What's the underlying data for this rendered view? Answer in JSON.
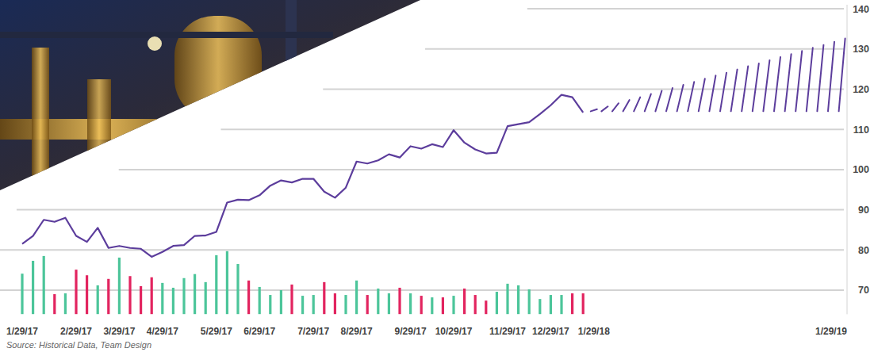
{
  "chart_data": {
    "type": "line",
    "source": "Source: Historical Data, Team Design",
    "categories": [
      "1/29/17",
      null,
      null,
      null,
      null,
      "2/29/17",
      null,
      null,
      null,
      "3/29/17",
      null,
      null,
      null,
      "4/29/17",
      null,
      null,
      null,
      null,
      "5/29/17",
      null,
      null,
      null,
      "6/29/17",
      null,
      null,
      null,
      null,
      "7/29/17",
      null,
      null,
      null,
      "8/29/17",
      null,
      null,
      null,
      null,
      "9/29/17",
      null,
      null,
      null,
      "10/29/17",
      null,
      null,
      null,
      null,
      "11/29/17",
      null,
      null,
      null,
      "12/29/17",
      null,
      null,
      null,
      "1/29/18",
      null,
      null,
      null,
      null,
      null,
      null,
      null,
      null,
      null,
      null,
      null,
      null,
      null,
      null,
      null,
      null,
      null,
      null,
      null,
      null,
      null,
      "1/29/19",
      null
    ],
    "ylim": [
      64,
      141
    ],
    "yticks": [
      70,
      80,
      90,
      100,
      110,
      120,
      130,
      140
    ],
    "grid": true,
    "series": [
      {
        "type": "line",
        "color": "#5c3d9c",
        "values": [
          81.5,
          83.5,
          87.5,
          87,
          88,
          83.5,
          82,
          85.5,
          80.5,
          81,
          80.5,
          80.3,
          78.3,
          79.5,
          81,
          81.2,
          83.5,
          83.6,
          84.5,
          91.8,
          92.5,
          92.4,
          93.6,
          96,
          97.3,
          96.8,
          97.7,
          97.7,
          94.5,
          93,
          95.5,
          102,
          101.5,
          102.3,
          103.8,
          103,
          105.8,
          105.2,
          106.3,
          105.6,
          109.8,
          106.7,
          105,
          104,
          104.2,
          110.8,
          111.3,
          111.8,
          113.8,
          116,
          118.6,
          118,
          114.2,
          null,
          null,
          null,
          null,
          null,
          null,
          null,
          null,
          null,
          null,
          null,
          null,
          null,
          null,
          null,
          null,
          null,
          null,
          null,
          null,
          null,
          null,
          null,
          null
        ]
      },
      {
        "type": "bar",
        "values": [
          74.1,
          77.3,
          78.5,
          69,
          69.2,
          75.1,
          73.7,
          71.2,
          72.8,
          78.1,
          73.5,
          71,
          73.2,
          71.8,
          70.6,
          73,
          74,
          72,
          78.7,
          79.7,
          76.5,
          72.4,
          70.8,
          68.8,
          70,
          71.4,
          68.6,
          68.8,
          72,
          69.2,
          68.8,
          72.4,
          68.8,
          70.4,
          69.2,
          70.6,
          69.2,
          68.6,
          68.2,
          68.2,
          68.6,
          70.4,
          68.8,
          67.4,
          69.6,
          71.6,
          71.2,
          70.2,
          67.8,
          68.8,
          68.8,
          69.2,
          69.2,
          null,
          null,
          null,
          null,
          null,
          null,
          null,
          null,
          null,
          null,
          null,
          null,
          null,
          null,
          null,
          null,
          null,
          null,
          null,
          null,
          null,
          null,
          null,
          null
        ],
        "colors": [
          "#4cc59a",
          "#4cc59a",
          "#4cc59a",
          "#e2245f",
          "#4cc59a",
          "#e2245f",
          "#e2245f",
          "#4cc59a",
          "#e2245f",
          "#4cc59a",
          "#e2245f",
          "#e2245f",
          "#e2245f",
          "#4cc59a",
          "#4cc59a",
          "#4cc59a",
          "#4cc59a",
          "#4cc59a",
          "#4cc59a",
          "#4cc59a",
          "#4cc59a",
          "#e2245f",
          "#4cc59a",
          "#4cc59a",
          "#4cc59a",
          "#e2245f",
          "#4cc59a",
          "#4cc59a",
          "#e2245f",
          "#e2245f",
          "#4cc59a",
          "#4cc59a",
          "#e2245f",
          "#4cc59a",
          "#4cc59a",
          "#e2245f",
          "#4cc59a",
          "#e2245f",
          "#4cc59a",
          "#e2245f",
          "#4cc59a",
          "#e2245f",
          "#e2245f",
          "#e2245f",
          "#4cc59a",
          "#4cc59a",
          "#4cc59a",
          "#4cc59a",
          "#4cc59a",
          "#4cc59a",
          "#4cc59a",
          "#e2245f",
          "#e2245f",
          null,
          null,
          null,
          null,
          null,
          null,
          null,
          null,
          null,
          null,
          null,
          null,
          null,
          null,
          null,
          null,
          null,
          null,
          null,
          null,
          null,
          null,
          null,
          null
        ]
      },
      {
        "type": "range",
        "color": "#5c3d9c",
        "line_style": "hatched",
        "low": [
          null,
          null,
          null,
          null,
          null,
          null,
          null,
          null,
          null,
          null,
          null,
          null,
          null,
          null,
          null,
          null,
          null,
          null,
          null,
          null,
          null,
          null,
          null,
          null,
          null,
          null,
          null,
          null,
          null,
          null,
          null,
          null,
          null,
          null,
          null,
          null,
          null,
          null,
          null,
          null,
          null,
          null,
          null,
          null,
          null,
          null,
          null,
          null,
          null,
          null,
          null,
          null,
          null,
          114.5,
          114.5,
          114.5,
          114.5,
          114.5,
          114.5,
          114.5,
          114.5,
          114.5,
          114.5,
          114.5,
          114.5,
          114.5,
          114.5,
          114.5,
          114.5,
          114.5,
          114.5,
          114.5,
          114.5,
          114.5,
          114.5,
          114.5,
          114.5
        ],
        "high": [
          null,
          null,
          null,
          null,
          null,
          null,
          null,
          null,
          null,
          null,
          null,
          null,
          null,
          null,
          null,
          null,
          null,
          null,
          null,
          null,
          null,
          null,
          null,
          null,
          null,
          null,
          null,
          null,
          null,
          null,
          null,
          null,
          null,
          null,
          null,
          null,
          null,
          null,
          null,
          null,
          null,
          null,
          null,
          null,
          null,
          null,
          null,
          null,
          null,
          null,
          null,
          null,
          null,
          115,
          115.7,
          116.5,
          117.3,
          118,
          118.8,
          119.6,
          120.3,
          121.1,
          121.8,
          122.6,
          123.4,
          124.1,
          124.9,
          125.7,
          126.4,
          127.2,
          128,
          128.7,
          129.5,
          130.3,
          131,
          131.8,
          132.6
        ]
      }
    ]
  }
}
